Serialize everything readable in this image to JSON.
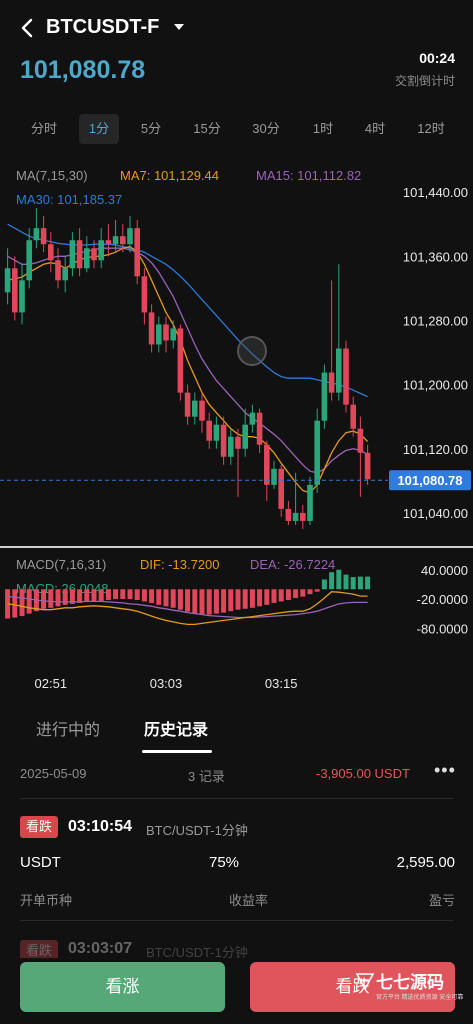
{
  "header": {
    "symbol": "BTCUSDT-F",
    "price": "101,080.78",
    "countdown": "00:24",
    "countdown_label": "交割倒计时"
  },
  "intervals": [
    "分时",
    "1分",
    "5分",
    "15分",
    "30分",
    "1时",
    "4时",
    "12时"
  ],
  "active_interval": "1分",
  "colors": {
    "up": "#2ca57a",
    "down": "#e0475a",
    "ma7": "#e59a1c",
    "ma15": "#9b63b8",
    "ma30": "#2d7bd6",
    "accent": "#4fa8c9",
    "price_tag": "#2f7be0"
  },
  "chart_data": [
    {
      "type": "candlestick",
      "legend": {
        "ma_label": "MA(7,15,30)",
        "ma7": "MA7: 101,129.44",
        "ma15": "MA15: 101,112.82",
        "ma30": "MA30: 101,185.37"
      },
      "y_ticks": [
        "101,440.00",
        "101,360.00",
        "101,280.00",
        "101,200.00",
        "101,120.00",
        "101,040.00"
      ],
      "y_tick_values": [
        101440,
        101360,
        101280,
        101200,
        101120,
        101040
      ],
      "ylim": [
        101000,
        101480
      ],
      "current_price": 101080.78,
      "current_price_label": "101,080.78",
      "x_ticks": [
        "02:51",
        "03:03",
        "03:15"
      ],
      "candles": [
        [
          101315,
          101345,
          101300,
          101370
        ],
        [
          101345,
          101290,
          101280,
          101360
        ],
        [
          101290,
          101330,
          101275,
          101350
        ],
        [
          101330,
          101380,
          101320,
          101395
        ],
        [
          101380,
          101395,
          101370,
          101420
        ],
        [
          101395,
          101375,
          101365,
          101410
        ],
        [
          101375,
          101355,
          101340,
          101390
        ],
        [
          101355,
          101330,
          101320,
          101370
        ],
        [
          101330,
          101345,
          101315,
          101360
        ],
        [
          101345,
          101380,
          101335,
          101390
        ],
        [
          101380,
          101345,
          101335,
          101395
        ],
        [
          101345,
          101370,
          101340,
          101385
        ],
        [
          101370,
          101355,
          101345,
          101380
        ],
        [
          101355,
          101380,
          101345,
          101395
        ],
        [
          101380,
          101375,
          101360,
          101400
        ],
        [
          101375,
          101385,
          101365,
          101405
        ],
        [
          101385,
          101375,
          101365,
          101400
        ],
        [
          101375,
          101395,
          101365,
          101410
        ],
        [
          101395,
          101335,
          101325,
          101405
        ],
        [
          101335,
          101290,
          101275,
          101345
        ],
        [
          101290,
          101250,
          101240,
          101300
        ],
        [
          101250,
          101275,
          101240,
          101285
        ],
        [
          101275,
          101255,
          101240,
          101285
        ],
        [
          101255,
          101270,
          101245,
          101280
        ],
        [
          101270,
          101190,
          101180,
          101275
        ],
        [
          101190,
          101160,
          101150,
          101200
        ],
        [
          101160,
          101180,
          101150,
          101190
        ],
        [
          101180,
          101155,
          101140,
          101190
        ],
        [
          101155,
          101130,
          101120,
          101165
        ],
        [
          101130,
          101150,
          101120,
          101160
        ],
        [
          101150,
          101110,
          101100,
          101160
        ],
        [
          101110,
          101135,
          101100,
          101145
        ],
        [
          101135,
          101120,
          101060,
          101145
        ],
        [
          101120,
          101150,
          101110,
          101170
        ],
        [
          101150,
          101165,
          101140,
          101175
        ],
        [
          101165,
          101125,
          101115,
          101170
        ],
        [
          101125,
          101075,
          101055,
          101130
        ],
        [
          101075,
          101095,
          101070,
          101105
        ],
        [
          101095,
          101045,
          101035,
          101100
        ],
        [
          101045,
          101030,
          101025,
          101055
        ],
        [
          101030,
          101040,
          101025,
          101090
        ],
        [
          101040,
          101030,
          101020,
          101050
        ],
        [
          101030,
          101075,
          101025,
          101085
        ],
        [
          101075,
          101155,
          101065,
          101170
        ],
        [
          101155,
          101215,
          101145,
          101225
        ],
        [
          101215,
          101190,
          101180,
          101330
        ],
        [
          101190,
          101245,
          101180,
          101350
        ],
        [
          101245,
          101175,
          101165,
          101255
        ],
        [
          101175,
          101145,
          101135,
          101185
        ],
        [
          101145,
          101115,
          101060,
          101160
        ],
        [
          101115,
          101082,
          101075,
          101125
        ]
      ],
      "ma7": [
        101330,
        101332,
        101334,
        101340,
        101345,
        101350,
        101352,
        101350,
        101345,
        101350,
        101356,
        101358,
        101360,
        101360,
        101362,
        101365,
        101370,
        101372,
        101365,
        101350,
        101330,
        101310,
        101290,
        101275,
        101255,
        101230,
        101210,
        101190,
        101175,
        101165,
        101155,
        101145,
        101138,
        101135,
        101135,
        101133,
        101125,
        101115,
        101102,
        101090,
        101078,
        101068,
        101065,
        101075,
        101095,
        101115,
        101130,
        101140,
        101142,
        101138,
        101129
      ],
      "ma15": [
        101360,
        101355,
        101350,
        101350,
        101352,
        101355,
        101358,
        101360,
        101360,
        101362,
        101364,
        101366,
        101368,
        101370,
        101370,
        101370,
        101370,
        101368,
        101365,
        101360,
        101352,
        101340,
        101325,
        101310,
        101290,
        101270,
        101250,
        101232,
        101218,
        101205,
        101195,
        101185,
        101175,
        101165,
        101158,
        101152,
        101145,
        101138,
        101130,
        101120,
        101110,
        101100,
        101092,
        101090,
        101095,
        101105,
        101112,
        101118,
        101120,
        101118,
        101113
      ],
      "ma30": [
        101400,
        101395,
        101390,
        101385,
        101382,
        101380,
        101378,
        101376,
        101375,
        101374,
        101374,
        101374,
        101375,
        101375,
        101375,
        101374,
        101372,
        101370,
        101368,
        101365,
        101360,
        101355,
        101350,
        101343,
        101335,
        101326,
        101316,
        101306,
        101296,
        101286,
        101276,
        101266,
        101256,
        101247,
        101238,
        101230,
        101222,
        101215,
        101210,
        101208,
        101208,
        101208,
        101208,
        101206,
        101204,
        101202,
        101200,
        101197,
        101193,
        101189,
        101185
      ]
    },
    {
      "type": "bar",
      "legend": {
        "label": "MACD(7,16,31)",
        "dif": "DIF: -13.7200",
        "dea": "DEA: -26.7224",
        "macd": "MACD: 26.0048"
      },
      "y_ticks": [
        "40.0000",
        "-20.0000",
        "-80.0000"
      ],
      "y_tick_values": [
        40,
        -20,
        -80
      ],
      "ylim": [
        -100,
        60
      ],
      "values": [
        -60,
        -58,
        -55,
        -50,
        -45,
        -40,
        -38,
        -35,
        -32,
        -30,
        -28,
        -26,
        -25,
        -24,
        -22,
        -20,
        -20,
        -20,
        -22,
        -25,
        -28,
        -32,
        -35,
        -38,
        -42,
        -46,
        -50,
        -52,
        -52,
        -50,
        -48,
        -45,
        -42,
        -40,
        -38,
        -35,
        -32,
        -28,
        -25,
        -22,
        -18,
        -15,
        -10,
        -5,
        20,
        35,
        40,
        30,
        25,
        26,
        26
      ],
      "dif": [
        -30,
        -32,
        -35,
        -38,
        -40,
        -42,
        -42,
        -40,
        -38,
        -38,
        -36,
        -35,
        -34,
        -35,
        -36,
        -38,
        -40,
        -42,
        -45,
        -50,
        -55,
        -60,
        -64,
        -67,
        -70,
        -72,
        -72,
        -70,
        -68,
        -66,
        -64,
        -62,
        -60,
        -58,
        -56,
        -54,
        -52,
        -50,
        -48,
        -46,
        -45,
        -45,
        -40,
        -30,
        -18,
        -5,
        -6,
        -8,
        -10,
        -14,
        -14
      ],
      "dea": [
        -15,
        -16,
        -18,
        -20,
        -22,
        -24,
        -25,
        -26,
        -26,
        -26,
        -26,
        -25,
        -25,
        -25,
        -26,
        -27,
        -28,
        -30,
        -31,
        -33,
        -35,
        -38,
        -40,
        -43,
        -45,
        -48,
        -50,
        -52,
        -54,
        -55,
        -56,
        -57,
        -58,
        -58,
        -58,
        -57,
        -56,
        -55,
        -54,
        -53,
        -52,
        -50,
        -48,
        -45,
        -40,
        -35,
        -30,
        -28,
        -27,
        -27,
        -27
      ]
    }
  ],
  "tabs": [
    "进行中的",
    "历史记录"
  ],
  "summary": {
    "date": "2025-05-09",
    "count": "3 记录",
    "pnl": "-3,905.00 USDT",
    "more": "•••"
  },
  "record": {
    "badge": "看跌",
    "time": "03:10:54",
    "pair": "BTC/USDT-1分钟",
    "currency": "USDT",
    "rate": "75%",
    "profit": "2,595.00",
    "label_currency": "开单币种",
    "label_rate": "收益率",
    "label_profit": "盈亏"
  },
  "record2": {
    "badge": "看跌",
    "time": "03:03:07",
    "pair": "BTC/USDT-1分钟"
  },
  "buttons": {
    "rise": "看涨",
    "fall": "看跌"
  },
  "watermark": {
    "title": "七七源码",
    "subtitle": "官方平台 精选优质资源 安全可靠"
  }
}
